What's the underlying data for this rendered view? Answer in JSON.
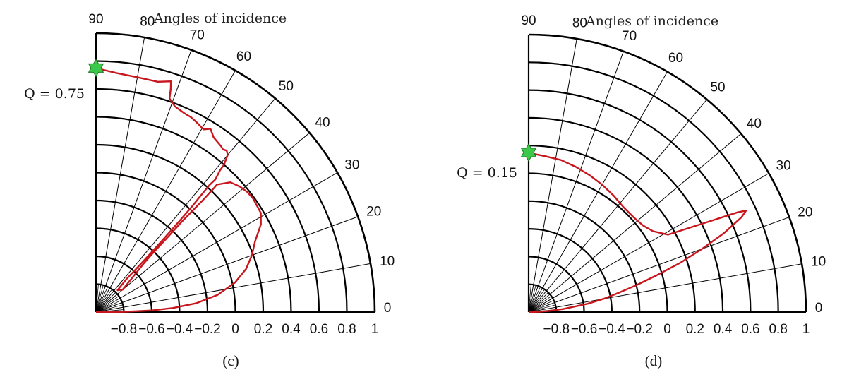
{
  "chart_data": [
    {
      "type": "polar-line",
      "title": "Angles of incidence",
      "panel_label": "(c)",
      "angle_ticks": [
        "0",
        "10",
        "20",
        "30",
        "40",
        "50",
        "60",
        "70",
        "80",
        "90"
      ],
      "radial_ticks": [
        "−0.8",
        "−0.6",
        "−0.4",
        "−0.2",
        "0",
        "0.2",
        "0.4",
        "0.6",
        "0.8",
        "1"
      ],
      "rlim": [
        -1,
        1
      ],
      "theta_range_deg": [
        0,
        90
      ],
      "marker": {
        "label": "Q = 0.75",
        "q_value": 0.75,
        "theta_deg": 90
      },
      "series_color": "#c8161d",
      "marker_color": "#3cc84a",
      "series": [
        {
          "points": [
            [
              90,
              0.75
            ],
            [
              88.6,
              0.74
            ],
            [
              85,
              0.72
            ],
            [
              80,
              0.71
            ],
            [
              75,
              0.71
            ],
            [
              72,
              0.74
            ],
            [
              71.5,
              0.69
            ],
            [
              71,
              0.62
            ],
            [
              69,
              0.58
            ],
            [
              66,
              0.56
            ],
            [
              64,
              0.555
            ],
            [
              62,
              0.54
            ],
            [
              59.5,
              0.52
            ],
            [
              58,
              0.55
            ],
            [
              56,
              0.51
            ],
            [
              53,
              0.49
            ],
            [
              52,
              0.48
            ],
            [
              51,
              0.49
            ],
            [
              50,
              0.47
            ],
            [
              49,
              0.4
            ],
            [
              48.8,
              0.35
            ],
            [
              48,
              0.28
            ],
            [
              48.2,
              0.22
            ],
            [
              48,
              0.12
            ],
            [
              47.7,
              0.02
            ],
            [
              47.5,
              -0.1
            ],
            [
              47.2,
              -0.3
            ],
            [
              47,
              -0.5
            ],
            [
              47.3,
              -0.68
            ],
            [
              45.5,
              -0.78
            ],
            [
              40,
              -0.75
            ],
            [
              45.5,
              -0.51
            ],
            [
              46,
              -0.42
            ],
            [
              46.2,
              -0.28
            ],
            [
              46.5,
              -0.1
            ],
            [
              46.3,
              0.1
            ],
            [
              46.4,
              0.23
            ],
            [
              46.5,
              0.26
            ],
            [
              44,
              0.34
            ],
            [
              41,
              0.37
            ],
            [
              38.5,
              0.385
            ],
            [
              36,
              0.39
            ],
            [
              34,
              0.385
            ],
            [
              31,
              0.38
            ],
            [
              28,
              0.34
            ],
            [
              24,
              0.25
            ],
            [
              20,
              0.19
            ],
            [
              16,
              0.12
            ],
            [
              12,
              0.02
            ],
            [
              8,
              -0.12
            ],
            [
              5,
              -0.28
            ],
            [
              3,
              -0.45
            ],
            [
              1.7,
              -0.6
            ],
            [
              0.5,
              -0.8
            ],
            [
              0,
              -1
            ]
          ]
        }
      ]
    },
    {
      "type": "polar-line",
      "title": "Angles of incidence",
      "panel_label": "(d)",
      "angle_ticks": [
        "0",
        "10",
        "20",
        "30",
        "40",
        "50",
        "60",
        "70",
        "80",
        "90"
      ],
      "radial_ticks": [
        "−0.8",
        "−0.6",
        "−0.4",
        "−0.2",
        "0",
        "0.2",
        "0.4",
        "0.6",
        "0.8",
        "1"
      ],
      "rlim": [
        -1,
        1
      ],
      "theta_range_deg": [
        0,
        90
      ],
      "marker": {
        "label": "Q = 0.15",
        "q_value": 0.15,
        "theta_deg": 90
      },
      "series_color": "#c8161d",
      "marker_color": "#3cc84a",
      "series": [
        {
          "points": [
            [
              90,
              0.15
            ],
            [
              88,
              0.14
            ],
            [
              84,
              0.13
            ],
            [
              78,
              0.12
            ],
            [
              72,
              0.1
            ],
            [
              66,
              0.08
            ],
            [
              60,
              0.06
            ],
            [
              54,
              0.04
            ],
            [
              48,
              0.02
            ],
            [
              42,
              0.02
            ],
            [
              37,
              0.035
            ],
            [
              33,
              0.07
            ],
            [
              29,
              0.15
            ],
            [
              27,
              0.4
            ],
            [
              25.5,
              0.67
            ],
            [
              25,
              0.73
            ],
            [
              24,
              0.68
            ],
            [
              22,
              0.52
            ],
            [
              20,
              0.33
            ],
            [
              18,
              0.15
            ],
            [
              16,
              -0.04
            ],
            [
              14,
              -0.2
            ],
            [
              12,
              -0.34
            ],
            [
              10,
              -0.45
            ],
            [
              8,
              -0.57
            ],
            [
              5,
              -0.75
            ],
            [
              3,
              -0.86
            ],
            [
              1.5,
              -0.94
            ],
            [
              0,
              -1
            ]
          ]
        }
      ]
    }
  ]
}
